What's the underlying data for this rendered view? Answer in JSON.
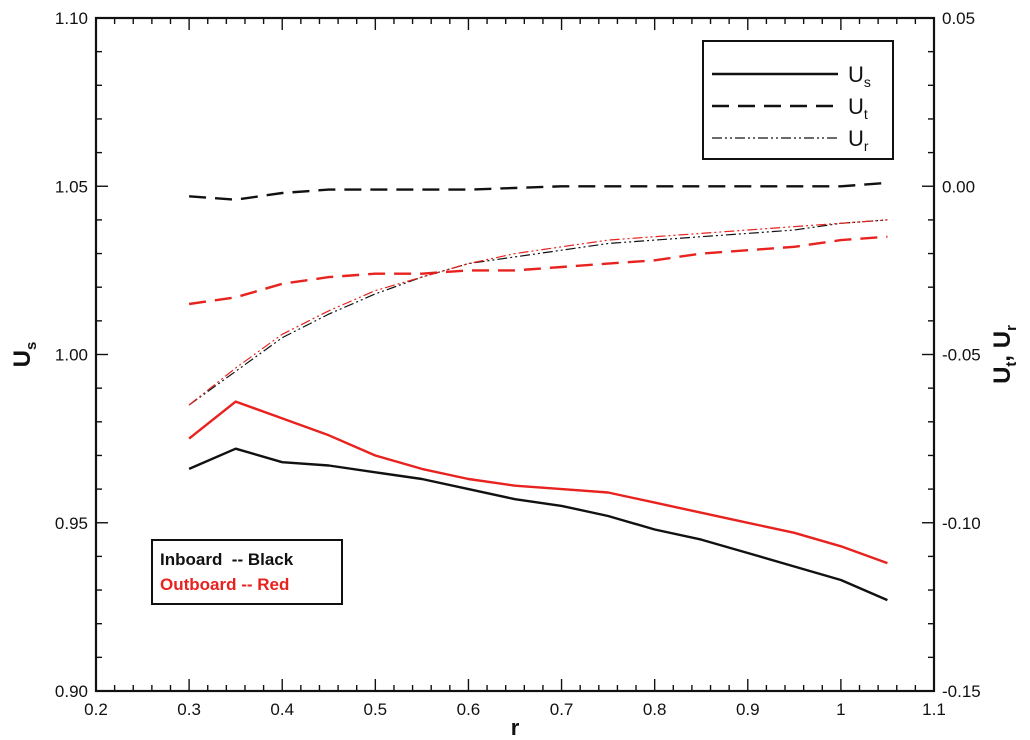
{
  "chart_data": {
    "type": "line",
    "title": "",
    "xlabel": "r",
    "ylabel": "U",
    "ylabel_sub": "s",
    "y2label_parts": [
      "U",
      "t",
      ", U",
      "r"
    ],
    "xlim": [
      0.2,
      1.1
    ],
    "ylim": [
      0.9,
      1.1
    ],
    "y2lim": [
      -0.15,
      0.05
    ],
    "x_ticks": [
      "0.2",
      "0.3",
      "0.4",
      "0.5",
      "0.6",
      "0.7",
      "0.8",
      "0.9",
      "1",
      "1.1"
    ],
    "y_ticks": [
      "0.90",
      "0.95",
      "1.00",
      "1.05",
      "1.10"
    ],
    "y2_ticks": [
      "-0.15",
      "-0.10",
      "-0.05",
      "0.00",
      "0.05"
    ],
    "legend": {
      "position": "top-right",
      "entries": [
        {
          "main": "U",
          "sub": "s",
          "style": "solid"
        },
        {
          "main": "U",
          "sub": "t",
          "style": "dashed"
        },
        {
          "main": "U",
          "sub": "r",
          "style": "dashdotdot"
        }
      ]
    },
    "annotation": {
      "line1": "Inboard  -- Black",
      "line2": "Outboard -- Red",
      "position": "bottom-left"
    },
    "colors": {
      "inboard": "#111111",
      "outboard": "#e8221e"
    },
    "series": [
      {
        "group": "inboard",
        "quantity": "Us",
        "axis": "left",
        "style": "solid",
        "x": [
          0.3,
          0.35,
          0.4,
          0.45,
          0.5,
          0.55,
          0.6,
          0.65,
          0.7,
          0.75,
          0.8,
          0.85,
          0.9,
          0.95,
          1.0,
          1.05
        ],
        "y": [
          0.966,
          0.972,
          0.968,
          0.967,
          0.965,
          0.963,
          0.96,
          0.957,
          0.955,
          0.952,
          0.948,
          0.945,
          0.941,
          0.937,
          0.933,
          0.927
        ]
      },
      {
        "group": "outboard",
        "quantity": "Us",
        "axis": "left",
        "style": "solid",
        "x": [
          0.3,
          0.35,
          0.4,
          0.45,
          0.5,
          0.55,
          0.6,
          0.65,
          0.7,
          0.75,
          0.8,
          0.85,
          0.9,
          0.95,
          1.0,
          1.05
        ],
        "y": [
          0.975,
          0.986,
          0.981,
          0.976,
          0.97,
          0.966,
          0.963,
          0.961,
          0.96,
          0.959,
          0.956,
          0.953,
          0.95,
          0.947,
          0.943,
          0.938
        ]
      },
      {
        "group": "inboard",
        "quantity": "Ut",
        "axis": "right",
        "style": "dashed",
        "x": [
          0.3,
          0.35,
          0.4,
          0.45,
          0.5,
          0.6,
          0.7,
          0.8,
          0.9,
          1.0,
          1.05
        ],
        "y": [
          -0.003,
          -0.004,
          -0.002,
          -0.001,
          -0.001,
          -0.001,
          0.0,
          0.0,
          0.0,
          0.0,
          0.001
        ]
      },
      {
        "group": "outboard",
        "quantity": "Ut",
        "axis": "right",
        "style": "dashed",
        "x": [
          0.3,
          0.35,
          0.4,
          0.45,
          0.5,
          0.55,
          0.6,
          0.65,
          0.7,
          0.75,
          0.8,
          0.85,
          0.9,
          0.95,
          1.0,
          1.05
        ],
        "y": [
          -0.035,
          -0.033,
          -0.029,
          -0.027,
          -0.026,
          -0.026,
          -0.025,
          -0.025,
          -0.024,
          -0.023,
          -0.022,
          -0.02,
          -0.019,
          -0.018,
          -0.016,
          -0.015
        ]
      },
      {
        "group": "inboard",
        "quantity": "Ur",
        "axis": "right",
        "style": "dashdotdot",
        "x": [
          0.3,
          0.35,
          0.4,
          0.45,
          0.5,
          0.55,
          0.6,
          0.65,
          0.7,
          0.75,
          0.8,
          0.85,
          0.9,
          0.95,
          1.0,
          1.05
        ],
        "y": [
          -0.065,
          -0.055,
          -0.045,
          -0.038,
          -0.032,
          -0.027,
          -0.023,
          -0.021,
          -0.019,
          -0.017,
          -0.016,
          -0.015,
          -0.014,
          -0.013,
          -0.011,
          -0.01
        ]
      },
      {
        "group": "outboard",
        "quantity": "Ur",
        "axis": "right",
        "style": "dashdotdot",
        "x": [
          0.3,
          0.35,
          0.4,
          0.45,
          0.5,
          0.55,
          0.6,
          0.65,
          0.7,
          0.75,
          0.8,
          0.85,
          0.9,
          0.95,
          1.0,
          1.05
        ],
        "y": [
          -0.065,
          -0.054,
          -0.044,
          -0.037,
          -0.031,
          -0.027,
          -0.023,
          -0.02,
          -0.018,
          -0.016,
          -0.015,
          -0.014,
          -0.013,
          -0.012,
          -0.011,
          -0.01
        ]
      }
    ]
  }
}
